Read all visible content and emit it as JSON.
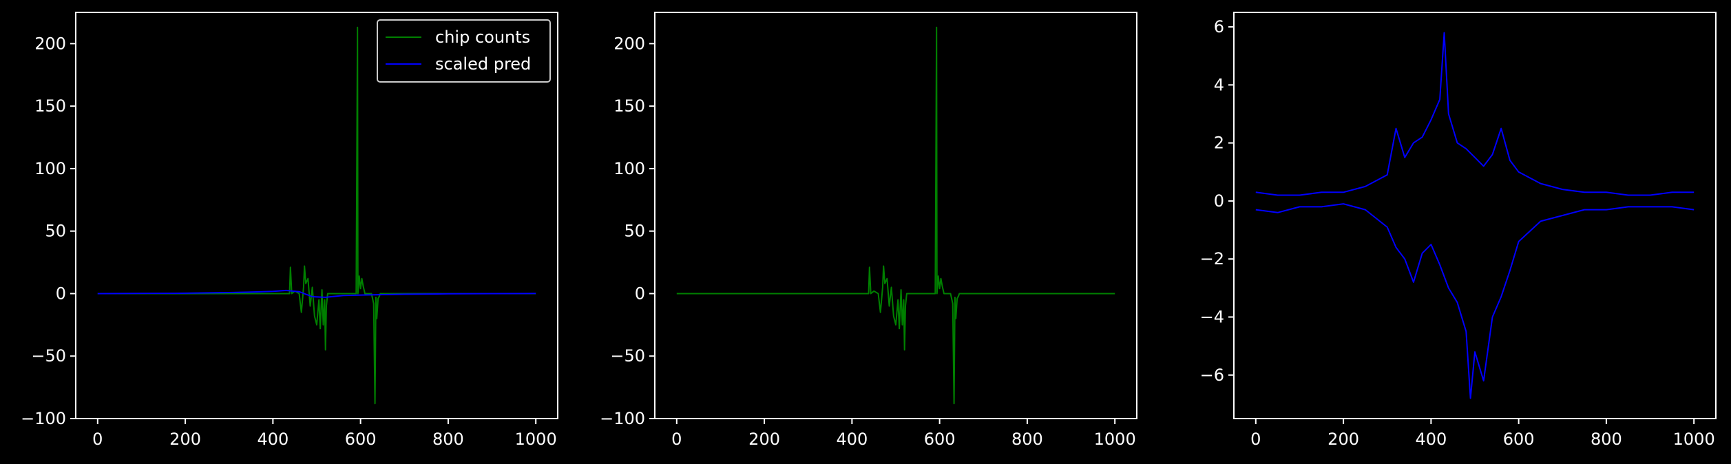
{
  "figure": {
    "background": "#000000",
    "foreground": "#ffffff",
    "colors": {
      "chip_counts": "#008000",
      "scaled_pred": "#0000ff"
    }
  },
  "chart_data": [
    {
      "type": "line",
      "title": "",
      "xlabel": "",
      "ylabel": "",
      "xlim": [
        -50,
        1050
      ],
      "ylim": [
        -100,
        225
      ],
      "xticks": [
        0,
        200,
        400,
        600,
        800,
        1000
      ],
      "yticks": [
        -100,
        -50,
        0,
        50,
        100,
        150,
        200
      ],
      "xtick_labels": [
        "0",
        "200",
        "400",
        "600",
        "800",
        "1000"
      ],
      "ytick_labels": [
        "−100",
        "−50",
        "0",
        "50",
        "100",
        "150",
        "200"
      ],
      "grid": false,
      "legend": {
        "position": "top-right",
        "entries": [
          "chip counts",
          "scaled pred"
        ]
      },
      "series": [
        {
          "name": "chip counts",
          "color": "#008000",
          "x": [
            0,
            100,
            200,
            300,
            400,
            430,
            438,
            440,
            443,
            450,
            460,
            465,
            470,
            472,
            475,
            480,
            485,
            490,
            495,
            500,
            505,
            508,
            512,
            515,
            518,
            520,
            522,
            525,
            530,
            540,
            560,
            580,
            590,
            593,
            594,
            597,
            600,
            603,
            606,
            610,
            615,
            620,
            625,
            630,
            633,
            635,
            637,
            640,
            643,
            645,
            650,
            700,
            800,
            900,
            1000
          ],
          "y": [
            0,
            0,
            0,
            0,
            0,
            0,
            0,
            21,
            0,
            2,
            0,
            -15,
            5,
            22,
            8,
            12,
            -10,
            5,
            -18,
            -25,
            -5,
            -28,
            3,
            -25,
            -5,
            -45,
            -10,
            0,
            0,
            0,
            0,
            0,
            0,
            213,
            0,
            14,
            4,
            12,
            6,
            0,
            0,
            0,
            0,
            -8,
            -88,
            -3,
            -20,
            -4,
            -2,
            0,
            0,
            0,
            0,
            0,
            0
          ]
        },
        {
          "name": "scaled pred",
          "color": "#0000ff",
          "x": [
            0,
            100,
            200,
            300,
            350,
            400,
            430,
            460,
            490,
            520,
            560,
            600,
            700,
            800,
            900,
            1000
          ],
          "y": [
            0,
            0.2,
            0.3,
            0.8,
            1.2,
            1.8,
            2.5,
            1.5,
            -2.5,
            -3,
            -1.5,
            -1.2,
            -0.5,
            -0.2,
            0,
            0.1
          ]
        }
      ]
    },
    {
      "type": "line",
      "title": "",
      "xlabel": "",
      "ylabel": "",
      "xlim": [
        -50,
        1050
      ],
      "ylim": [
        -100,
        225
      ],
      "xticks": [
        0,
        200,
        400,
        600,
        800,
        1000
      ],
      "yticks": [
        -100,
        -50,
        0,
        50,
        100,
        150,
        200
      ],
      "xtick_labels": [
        "0",
        "200",
        "400",
        "600",
        "800",
        "1000"
      ],
      "ytick_labels": [
        "−100",
        "−50",
        "0",
        "50",
        "100",
        "150",
        "200"
      ],
      "grid": false,
      "series": [
        {
          "color": "#008000",
          "x": [
            0,
            100,
            200,
            300,
            400,
            430,
            438,
            440,
            443,
            450,
            460,
            465,
            470,
            472,
            475,
            480,
            485,
            490,
            495,
            500,
            505,
            508,
            512,
            515,
            518,
            520,
            522,
            525,
            530,
            540,
            560,
            580,
            590,
            593,
            594,
            597,
            600,
            603,
            606,
            610,
            615,
            620,
            625,
            630,
            633,
            635,
            637,
            640,
            643,
            645,
            650,
            700,
            800,
            900,
            1000
          ],
          "y": [
            0,
            0,
            0,
            0,
            0,
            0,
            0,
            21,
            0,
            2,
            0,
            -15,
            5,
            22,
            8,
            12,
            -10,
            5,
            -18,
            -25,
            -5,
            -28,
            3,
            -25,
            -5,
            -45,
            -10,
            0,
            0,
            0,
            0,
            0,
            0,
            213,
            0,
            14,
            4,
            12,
            6,
            0,
            0,
            0,
            0,
            -8,
            -88,
            -3,
            -20,
            -4,
            -2,
            0,
            0,
            0,
            0,
            0,
            0
          ]
        }
      ]
    },
    {
      "type": "line",
      "title": "",
      "xlabel": "",
      "ylabel": "",
      "xlim": [
        -50,
        1050
      ],
      "ylim": [
        -7.5,
        6.5
      ],
      "xticks": [
        0,
        200,
        400,
        600,
        800,
        1000
      ],
      "yticks": [
        -6,
        -4,
        -2,
        0,
        2,
        4,
        6
      ],
      "xtick_labels": [
        "0",
        "200",
        "400",
        "600",
        "800",
        "1000"
      ],
      "ytick_labels": [
        "−6",
        "−4",
        "−2",
        "0",
        "2",
        "4",
        "6"
      ],
      "grid": false,
      "series": [
        {
          "color": "#0000ff",
          "x": [
            0,
            50,
            100,
            150,
            200,
            250,
            300,
            320,
            340,
            360,
            380,
            400,
            420,
            430,
            440,
            460,
            480,
            500,
            520,
            540,
            560,
            580,
            600,
            650,
            700,
            750,
            800,
            850,
            900,
            950,
            1000
          ],
          "y": [
            0.3,
            0.2,
            0.2,
            0.3,
            0.3,
            0.5,
            0.9,
            2.5,
            1.5,
            2.0,
            2.2,
            2.8,
            3.5,
            5.8,
            3.0,
            2.0,
            1.8,
            1.5,
            1.2,
            1.6,
            2.5,
            1.4,
            1.0,
            0.6,
            0.4,
            0.3,
            0.3,
            0.2,
            0.2,
            0.3,
            0.3
          ]
        },
        {
          "color": "#0000ff",
          "x": [
            0,
            50,
            100,
            150,
            200,
            250,
            300,
            320,
            340,
            360,
            380,
            400,
            420,
            440,
            460,
            480,
            490,
            500,
            520,
            540,
            560,
            580,
            600,
            650,
            700,
            750,
            800,
            850,
            900,
            950,
            1000
          ],
          "y": [
            -0.3,
            -0.4,
            -0.2,
            -0.2,
            -0.1,
            -0.3,
            -0.9,
            -1.6,
            -2.0,
            -2.8,
            -1.8,
            -1.5,
            -2.2,
            -3.0,
            -3.5,
            -4.5,
            -6.8,
            -5.2,
            -6.2,
            -4.0,
            -3.3,
            -2.4,
            -1.4,
            -0.7,
            -0.5,
            -0.3,
            -0.3,
            -0.2,
            -0.2,
            -0.2,
            -0.3
          ]
        }
      ]
    }
  ]
}
